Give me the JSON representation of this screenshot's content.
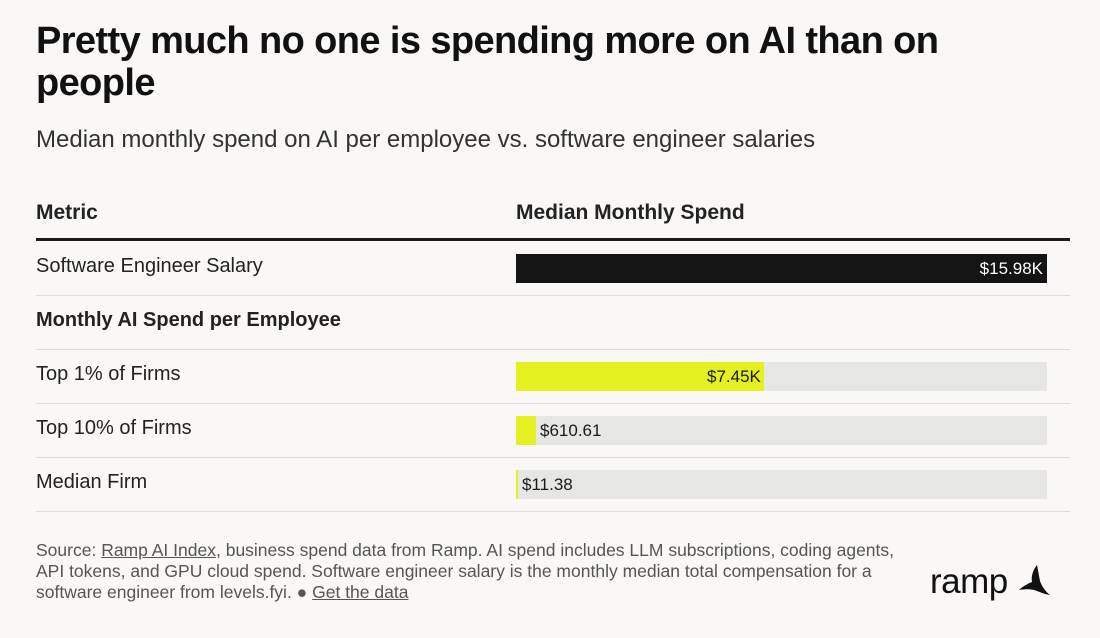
{
  "title": "Pretty much no one is spending more on AI than on people",
  "subtitle": "Median monthly spend on AI per employee vs. software engineer salaries",
  "columns": {
    "metric": "Metric",
    "spend": "Median Monthly Spend"
  },
  "section_label": "Monthly AI Spend per Employee",
  "colors": {
    "salary": "#141414",
    "ai": "#e4f020",
    "track": "#e6e6e4"
  },
  "chart_data": {
    "type": "bar",
    "orientation": "horizontal",
    "categories": [
      "Software Engineer Salary",
      "Top 1% of Firms",
      "Top 10% of Firms",
      "Median Firm"
    ],
    "values": [
      15980,
      7450,
      610.61,
      11.38
    ],
    "value_labels": [
      "$15.98K",
      "$7.45K",
      "$610.61",
      "$11.38"
    ],
    "xlim": [
      0,
      15980
    ]
  },
  "source": {
    "prefix": "Source: ",
    "link_text": "Ramp AI Index",
    "body": ", business spend data from Ramp. AI spend includes LLM subscriptions, coding agents, API tokens, and GPU cloud spend. Software engineer salary is the monthly median total compensation for a software engineer from levels.fyi. ",
    "bullet": "●",
    "data_link": "Get the data"
  },
  "logo": {
    "text": "ramp",
    "icon": "ramp-wing-icon"
  }
}
